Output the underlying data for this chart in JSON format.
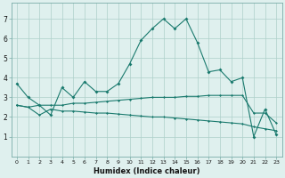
{
  "xlabel": "Humidex (Indice chaleur)",
  "x": [
    0,
    1,
    2,
    3,
    4,
    5,
    6,
    7,
    8,
    9,
    10,
    11,
    12,
    13,
    14,
    15,
    16,
    17,
    18,
    19,
    20,
    21,
    22,
    23
  ],
  "line1": [
    3.7,
    3.0,
    2.6,
    2.1,
    3.5,
    3.0,
    3.8,
    3.3,
    3.3,
    3.7,
    4.7,
    5.9,
    6.5,
    7.0,
    6.5,
    7.0,
    5.8,
    4.3,
    4.4,
    3.8,
    4.0,
    1.0,
    2.4,
    1.1
  ],
  "line2": [
    2.6,
    2.5,
    2.6,
    2.6,
    2.6,
    2.7,
    2.7,
    2.75,
    2.8,
    2.85,
    2.9,
    2.95,
    3.0,
    3.0,
    3.0,
    3.05,
    3.05,
    3.1,
    3.1,
    3.1,
    3.1,
    2.2,
    2.2,
    1.7
  ],
  "line3": [
    2.6,
    2.5,
    2.1,
    2.4,
    2.3,
    2.3,
    2.25,
    2.2,
    2.2,
    2.15,
    2.1,
    2.05,
    2.0,
    2.0,
    1.95,
    1.9,
    1.85,
    1.8,
    1.75,
    1.7,
    1.65,
    1.5,
    1.4,
    1.3
  ],
  "color": "#1a7a6e",
  "bg_color": "#dff0ee",
  "grid_color": "#aecfca",
  "ylim": [
    0,
    7.8
  ],
  "yticks": [
    1,
    2,
    3,
    4,
    5,
    6,
    7
  ],
  "xticks": [
    0,
    1,
    2,
    3,
    4,
    5,
    6,
    7,
    8,
    9,
    10,
    11,
    12,
    13,
    14,
    15,
    16,
    17,
    18,
    19,
    20,
    21,
    22,
    23
  ],
  "xlim": [
    -0.5,
    23.5
  ]
}
